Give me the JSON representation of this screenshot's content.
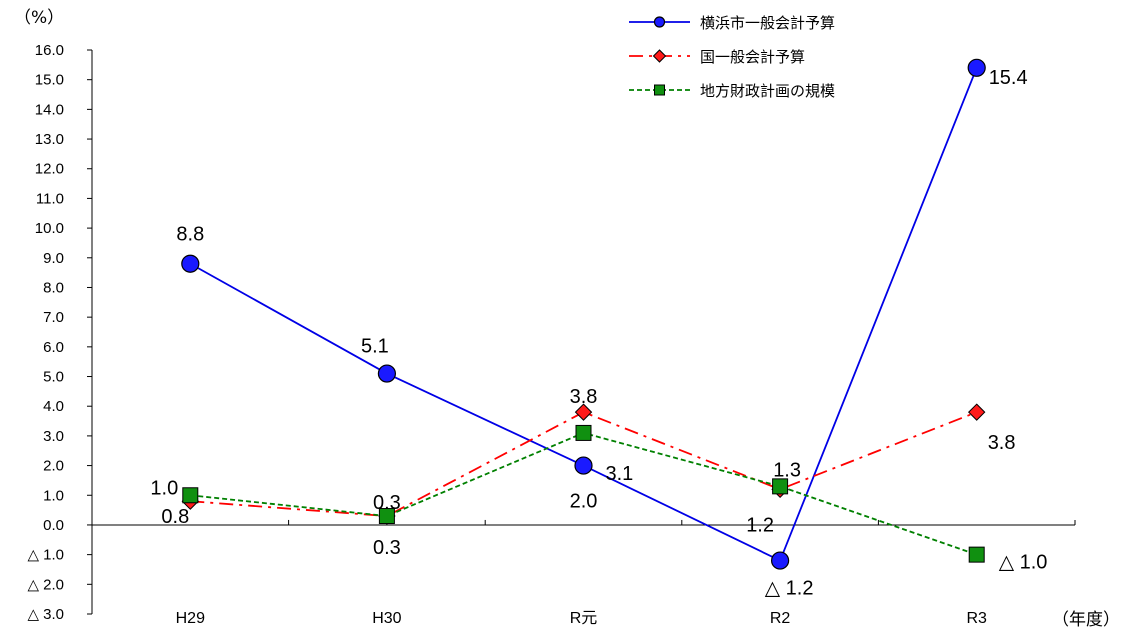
{
  "chart_data": {
    "type": "line",
    "y_unit": "（%）",
    "x_unit": "（年度）",
    "categories": [
      "H29",
      "H30",
      "R元",
      "R2",
      "R3"
    ],
    "ylim": [
      -3.0,
      16.0
    ],
    "y_ticks": [
      16.0,
      15.0,
      14.0,
      13.0,
      12.0,
      11.0,
      10.0,
      9.0,
      8.0,
      7.0,
      6.0,
      5.0,
      4.0,
      3.0,
      2.0,
      1.0,
      0.0,
      -1.0,
      -2.0,
      -3.0
    ],
    "y_tick_labels": [
      "16.0",
      "15.0",
      "14.0",
      "13.0",
      "12.0",
      "11.0",
      "10.0",
      "9.0",
      "8.0",
      "7.0",
      "6.0",
      "5.0",
      "4.0",
      "3.0",
      "2.0",
      "1.0",
      "0.0",
      "△ 1.0",
      "△ 2.0",
      "△ 3.0"
    ],
    "grid": false,
    "legend_position": "top-right",
    "series": [
      {
        "name": "横浜市一般会計予算",
        "values": [
          8.8,
          5.1,
          2.0,
          -1.2,
          15.4
        ],
        "labels": [
          "8.8",
          "5.1",
          "2.0",
          "△ 1.2",
          "15.4"
        ],
        "color": "#0000e6",
        "marker_fill": "#1a1aff",
        "marker": "circle",
        "line_style": "solid"
      },
      {
        "name": "国一般会計予算",
        "values": [
          0.8,
          0.3,
          3.8,
          1.2,
          3.8
        ],
        "labels": [
          "0.8",
          "0.3",
          "3.8",
          "1.2",
          "3.8"
        ],
        "color": "#ff0000",
        "marker_fill": "#ff1a1a",
        "marker": "diamond",
        "line_style": "dash-dot"
      },
      {
        "name": "地方財政計画の規模",
        "values": [
          1.0,
          0.3,
          3.1,
          1.3,
          -1.0
        ],
        "labels": [
          "1.0",
          "0.3",
          "3.1",
          "1.3",
          "△ 1.0"
        ],
        "color": "#008000",
        "marker_fill": "#109010",
        "marker": "square",
        "line_style": "dashed"
      }
    ]
  }
}
